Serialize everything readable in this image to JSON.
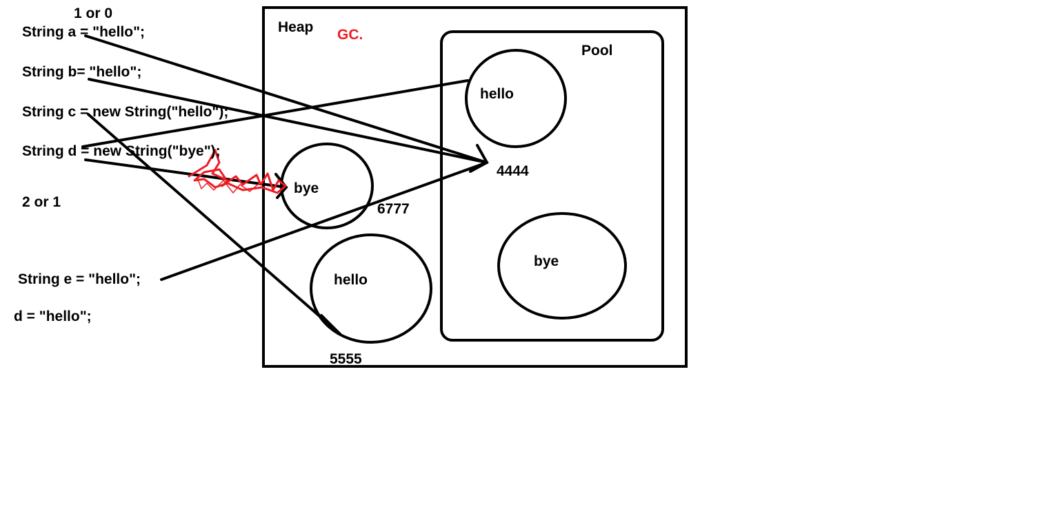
{
  "code": {
    "line_a": "String a = \"hello\";",
    "line_b": "String b= \"hello\";",
    "line_c": "String c = new String(\"hello\");",
    "line_d": "String d = new String(\"bye\");",
    "line_e": "String e = \"hello\";",
    "line_reassign": "d = \"hello\";"
  },
  "notes": {
    "top_count": "1 or 0",
    "mid_count": "2 or 1",
    "gc": "GC."
  },
  "heap": {
    "label": "Heap",
    "objects": [
      {
        "text": "bye",
        "address": "6777"
      },
      {
        "text": "hello",
        "address": "5555"
      }
    ]
  },
  "pool": {
    "label": "Pool",
    "objects": [
      {
        "text": "hello",
        "address": "4444"
      },
      {
        "text": "bye"
      }
    ]
  },
  "colors": {
    "ink": "#000000",
    "gc_red": "#ed1c24"
  }
}
